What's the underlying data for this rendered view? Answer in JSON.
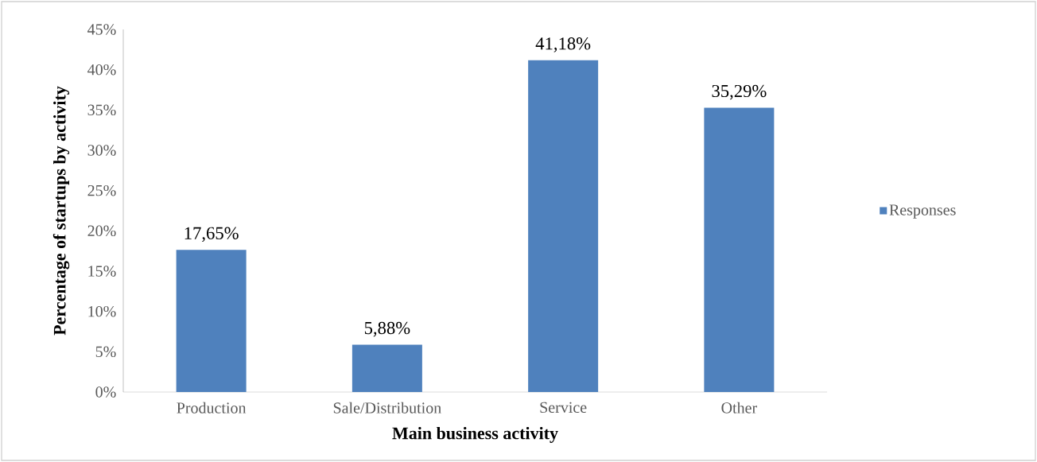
{
  "chart_data": {
    "type": "bar",
    "xlabel": "Main business activity",
    "ylabel": "Percentage of startups by activity",
    "categories": [
      "Production",
      "Sale/Distribution",
      "Service",
      "Other"
    ],
    "series": [
      {
        "name": "Responses",
        "color": "#4f81bd",
        "values": [
          17.65,
          5.88,
          41.18,
          35.29
        ],
        "value_labels": [
          "17,65%",
          "5,88%",
          "41,18%",
          "35,29%"
        ]
      }
    ],
    "ylim": [
      0,
      45
    ],
    "yticks": [
      {
        "value": 0,
        "label": "0%"
      },
      {
        "value": 5,
        "label": "5%"
      },
      {
        "value": 10,
        "label": "10%"
      },
      {
        "value": 15,
        "label": "15%"
      },
      {
        "value": 20,
        "label": "20%"
      },
      {
        "value": 25,
        "label": "25%"
      },
      {
        "value": 30,
        "label": "30%"
      },
      {
        "value": 35,
        "label": "35%"
      },
      {
        "value": 40,
        "label": "40%"
      },
      {
        "value": 45,
        "label": "45%"
      }
    ],
    "legend": "right"
  }
}
